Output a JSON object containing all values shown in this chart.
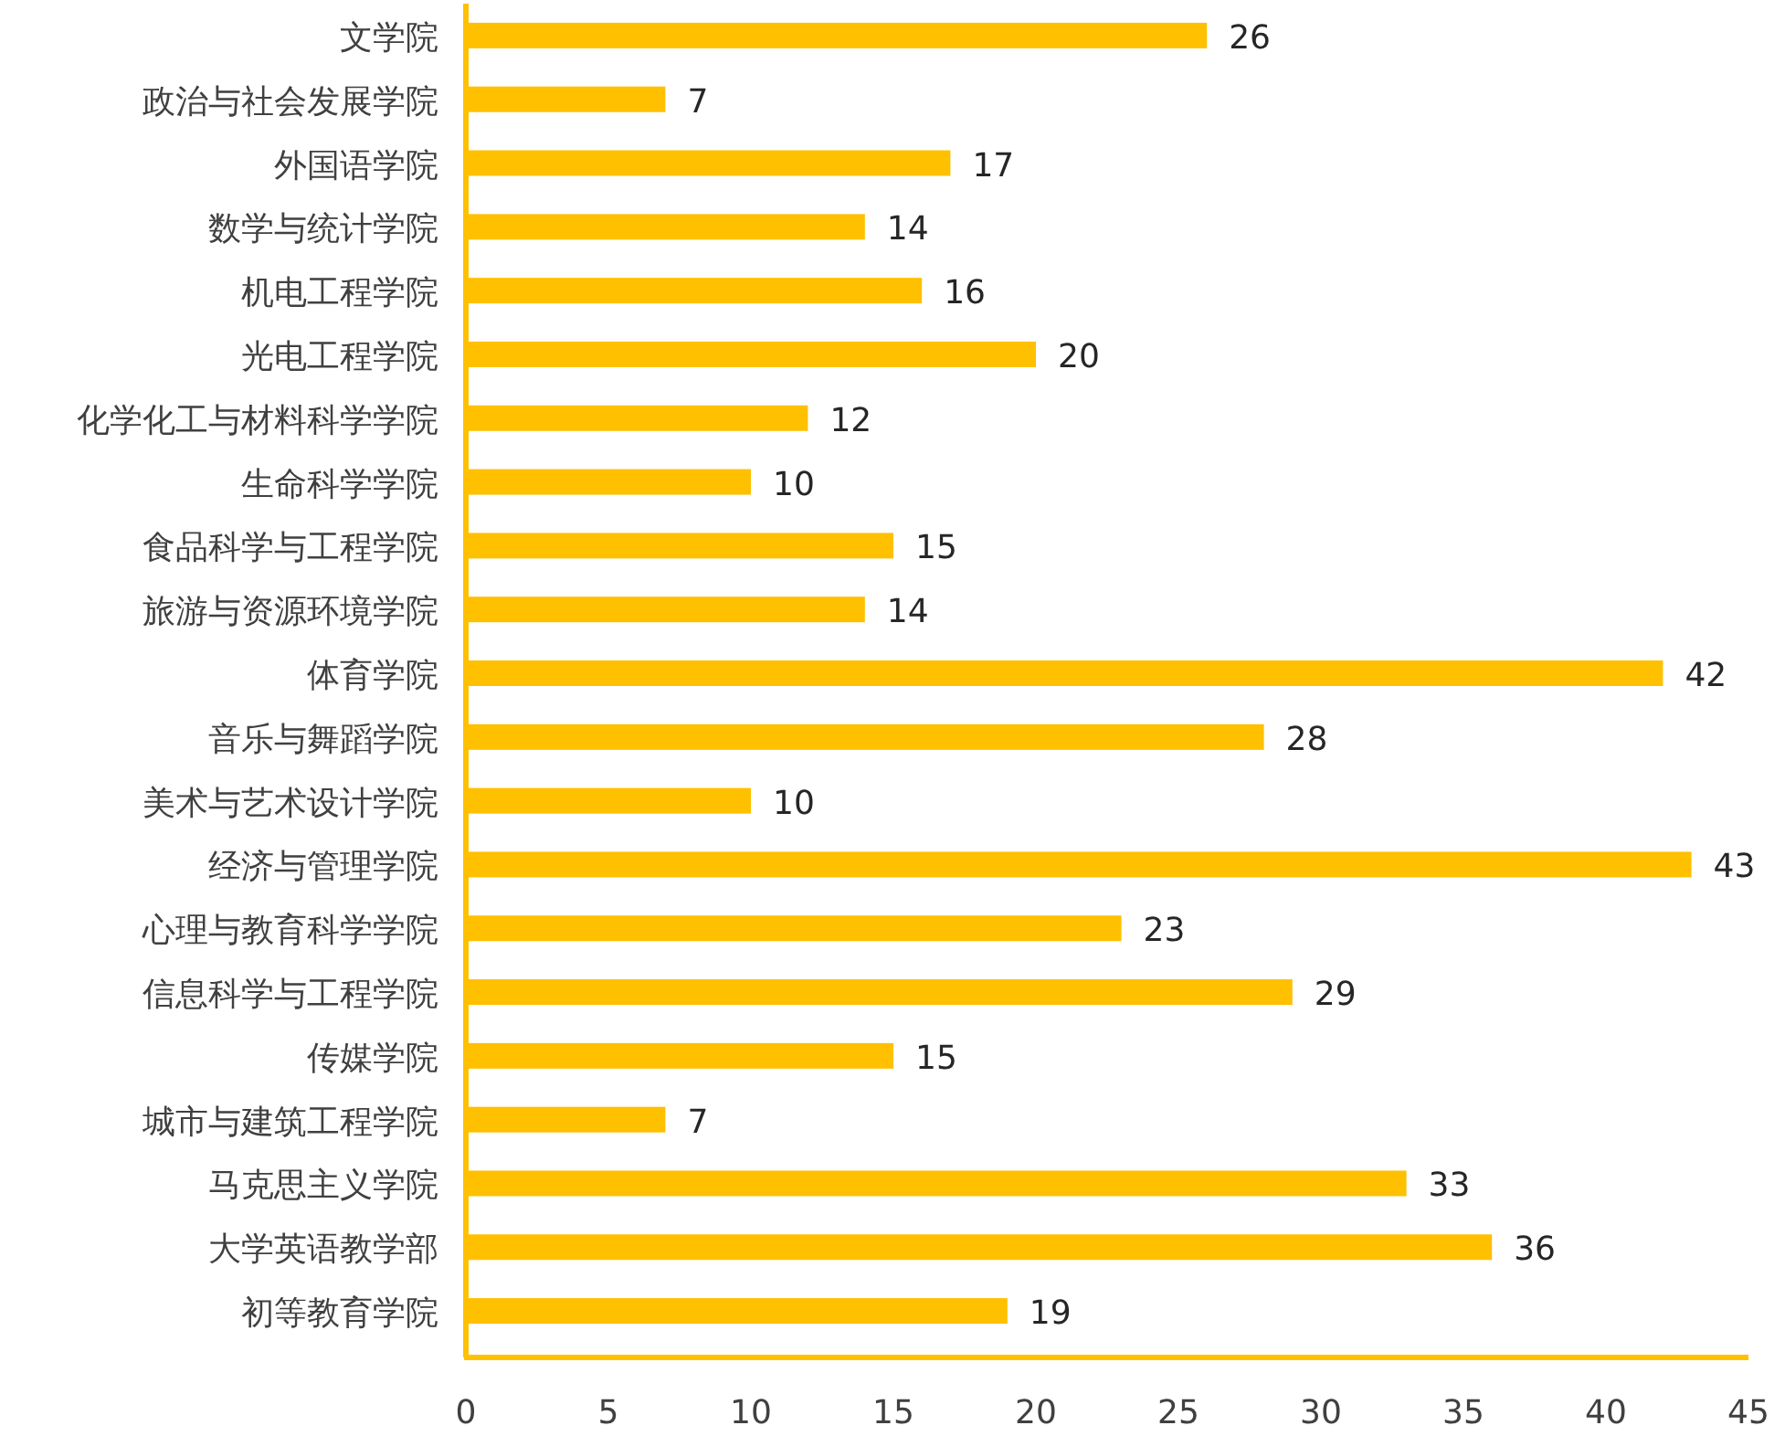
{
  "chart_data": {
    "type": "bar",
    "orientation": "horizontal",
    "categories": [
      "文学院",
      "政治与社会发展学院",
      "外国语学院",
      "数学与统计学院",
      "机电工程学院",
      "光电工程学院",
      "化学化工与材料科学学院",
      "生命科学学院",
      "食品科学与工程学院",
      "旅游与资源环境学院",
      "体育学院",
      "音乐与舞蹈学院",
      "美术与艺术设计学院",
      "经济与管理学院",
      "心理与教育科学学院",
      "信息科学与工程学院",
      "传媒学院",
      "城市与建筑工程学院",
      "马克思主义学院",
      "大学英语教学部",
      "初等教育学院"
    ],
    "values": [
      26,
      7,
      17,
      14,
      16,
      20,
      12,
      10,
      15,
      14,
      42,
      28,
      10,
      43,
      23,
      29,
      15,
      7,
      33,
      36,
      19
    ],
    "color": "#ffc000",
    "xlim": [
      0,
      45
    ],
    "xticks": [
      0,
      5,
      10,
      15,
      20,
      25,
      30,
      35,
      40,
      45
    ],
    "data_labels": true
  }
}
